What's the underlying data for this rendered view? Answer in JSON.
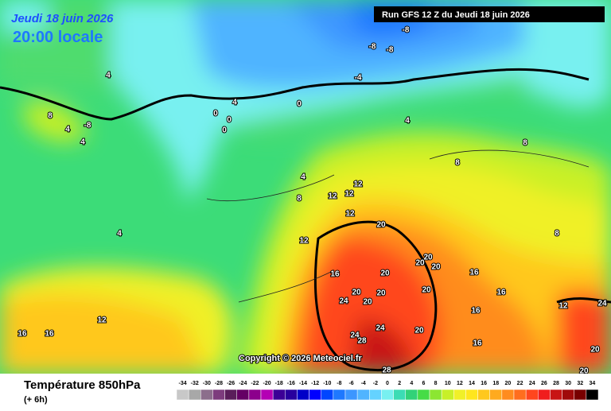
{
  "header": {
    "date": "Jeudi 18 juin 2026",
    "time": "20:00 locale",
    "run": "Run GFS 12 Z du Jeudi 18 juin 2026"
  },
  "copyright": "Copyright © 2026 Meteociel.fr",
  "footer": {
    "title": "Température 850hPa",
    "step": "(+ 6h)"
  },
  "contour_labels": [
    -8,
    -8,
    -8,
    -4,
    0,
    4,
    8,
    -8,
    4,
    4,
    4,
    0,
    0,
    0,
    4,
    4,
    8,
    8,
    8,
    12,
    12,
    12,
    12,
    4,
    12,
    20,
    20,
    20,
    20,
    20,
    16,
    20,
    24,
    20,
    20,
    24,
    28,
    24,
    20,
    20,
    16,
    16,
    16,
    16,
    28,
    16,
    16,
    8,
    12,
    12,
    24,
    20,
    20
  ],
  "legend": [
    {
      "value": -34,
      "color": "#c8c8c8"
    },
    {
      "value": -32,
      "color": "#a8a8a8"
    },
    {
      "value": -30,
      "color": "#8c6e8c"
    },
    {
      "value": -28,
      "color": "#7d3c7d"
    },
    {
      "value": -26,
      "color": "#5a1e5a"
    },
    {
      "value": -24,
      "color": "#640064"
    },
    {
      "value": -22,
      "color": "#8c008c"
    },
    {
      "value": -20,
      "color": "#b400b4"
    },
    {
      "value": -18,
      "color": "#3c0096"
    },
    {
      "value": -16,
      "color": "#28009e"
    },
    {
      "value": -14,
      "color": "#0000c8"
    },
    {
      "value": -12,
      "color": "#0000ff"
    },
    {
      "value": -10,
      "color": "#0046ff"
    },
    {
      "value": -8,
      "color": "#1e78ff"
    },
    {
      "value": -6,
      "color": "#3c96ff"
    },
    {
      "value": -4,
      "color": "#50b4ff"
    },
    {
      "value": -2,
      "color": "#64d2ff"
    },
    {
      "value": 0,
      "color": "#78f0f0"
    },
    {
      "value": 2,
      "color": "#3cdcb4"
    },
    {
      "value": 4,
      "color": "#32d278"
    },
    {
      "value": 6,
      "color": "#46dc46"
    },
    {
      "value": 8,
      "color": "#8ce632"
    },
    {
      "value": 10,
      "color": "#c8f028"
    },
    {
      "value": 12,
      "color": "#f0f028"
    },
    {
      "value": 14,
      "color": "#ffe61e"
    },
    {
      "value": 16,
      "color": "#ffc81e"
    },
    {
      "value": 18,
      "color": "#ffaa1e"
    },
    {
      "value": 20,
      "color": "#ff8c1e"
    },
    {
      "value": 22,
      "color": "#ff6e1e"
    },
    {
      "value": 24,
      "color": "#ff461e"
    },
    {
      "value": 26,
      "color": "#f01e1e"
    },
    {
      "value": 28,
      "color": "#c81414"
    },
    {
      "value": 30,
      "color": "#a00a0a"
    },
    {
      "value": 32,
      "color": "#780000"
    },
    {
      "value": 34,
      "color": "#000000"
    }
  ]
}
